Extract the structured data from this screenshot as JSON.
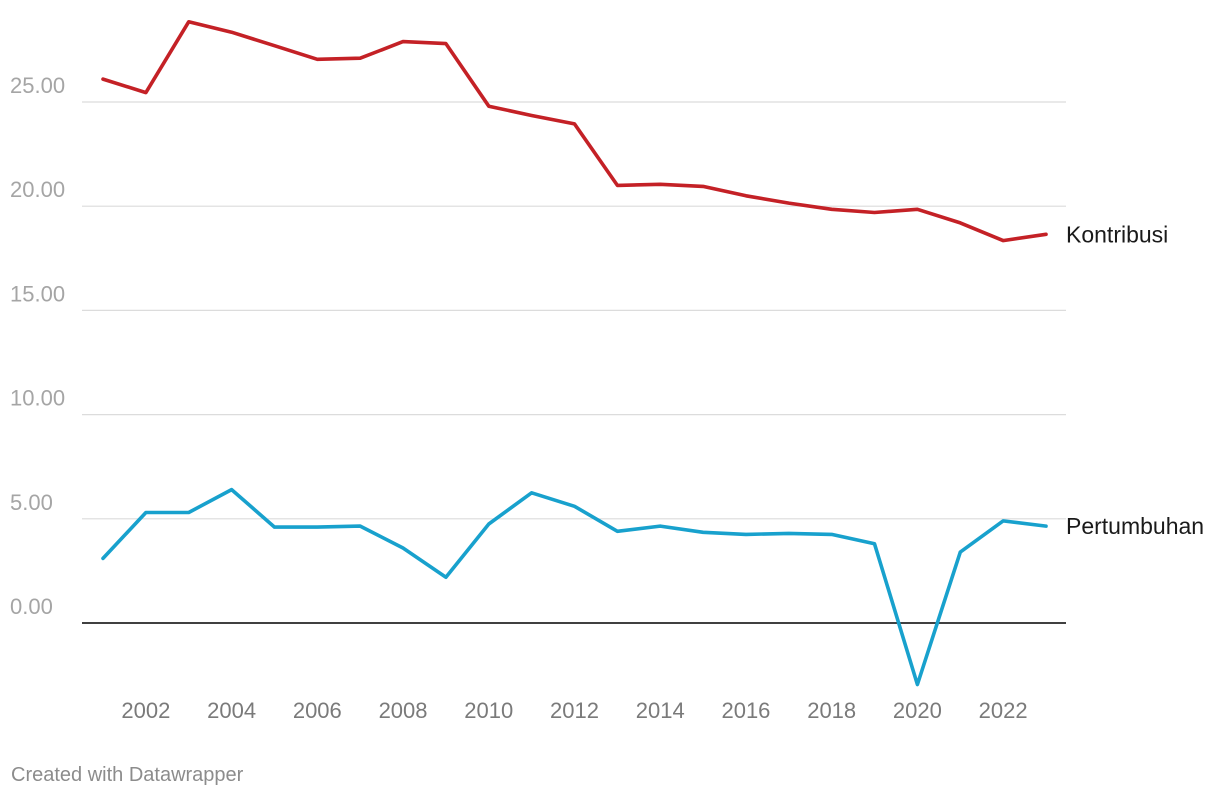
{
  "chart_data": {
    "type": "line",
    "x": [
      2001,
      2002,
      2003,
      2004,
      2005,
      2006,
      2007,
      2008,
      2009,
      2010,
      2011,
      2012,
      2013,
      2014,
      2015,
      2016,
      2017,
      2018,
      2019,
      2020,
      2021,
      2022,
      2023
    ],
    "series": [
      {
        "name": "Kontribusi",
        "color": "#c42126",
        "values": [
          26.1,
          25.45,
          28.85,
          28.35,
          27.7,
          27.05,
          27.1,
          27.9,
          27.8,
          24.8,
          24.35,
          23.95,
          21.0,
          21.05,
          20.95,
          20.5,
          20.15,
          19.85,
          19.7,
          19.85,
          19.2,
          18.35,
          18.65
        ]
      },
      {
        "name": "Pertumbuhan",
        "color": "#18a1cd",
        "values": [
          3.1,
          5.3,
          5.3,
          6.4,
          4.6,
          4.6,
          4.65,
          3.6,
          2.2,
          4.75,
          6.25,
          5.6,
          4.4,
          4.65,
          4.35,
          4.25,
          4.3,
          4.25,
          3.8,
          -2.95,
          3.4,
          4.9,
          4.65
        ]
      }
    ],
    "yticks": [
      "0.00",
      "5.00",
      "10.00",
      "15.00",
      "20.00",
      "25.00"
    ],
    "xticks": [
      "2002",
      "2004",
      "2006",
      "2008",
      "2010",
      "2012",
      "2014",
      "2016",
      "2018",
      "2020",
      "2022"
    ],
    "ylim": [
      -3.5,
      29.5
    ],
    "xlim": [
      2001,
      2023
    ],
    "grid": true,
    "legend": "inline-right"
  },
  "credit": "Created with Datawrapper"
}
